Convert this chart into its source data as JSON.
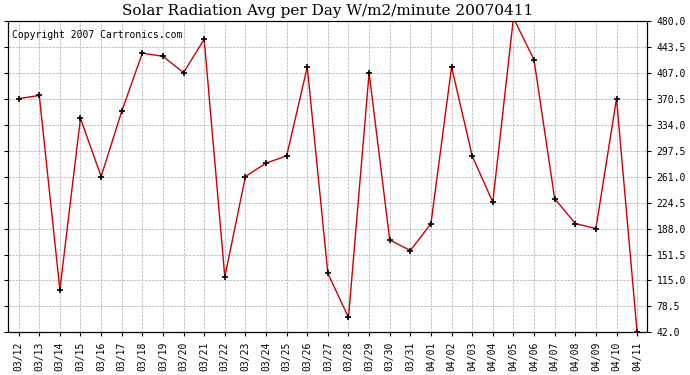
{
  "title": "Solar Radiation Avg per Day W/m2/minute 20070411",
  "copyright": "Copyright 2007 Cartronics.com",
  "labels": [
    "03/12",
    "03/13",
    "03/14",
    "03/15",
    "03/16",
    "03/17",
    "03/18",
    "03/19",
    "03/20",
    "03/21",
    "03/22",
    "03/23",
    "03/24",
    "03/25",
    "03/26",
    "03/27",
    "03/28",
    "03/29",
    "03/30",
    "03/31",
    "04/01",
    "04/02",
    "04/03",
    "04/04",
    "04/05",
    "04/06",
    "04/07",
    "04/08",
    "04/09",
    "04/10",
    "04/11"
  ],
  "values": [
    370.5,
    375.0,
    102.0,
    343.0,
    261.0,
    352.5,
    434.5,
    430.0,
    407.0,
    454.0,
    120.0,
    261.0,
    280.0,
    290.0,
    415.0,
    125.0,
    63.0,
    407.0,
    172.0,
    157.0,
    195.0,
    415.0,
    290.0,
    225.0,
    484.0,
    425.0,
    230.0,
    195.0,
    188.0,
    370.5,
    42.0
  ],
  "line_color": "#cc0000",
  "marker": "+",
  "marker_color": "#000000",
  "background_color": "#ffffff",
  "grid_color": "#aaaaaa",
  "ylim": [
    42.0,
    480.0
  ],
  "yticks": [
    42.0,
    78.5,
    115.0,
    151.5,
    188.0,
    224.5,
    261.0,
    297.5,
    334.0,
    370.5,
    407.0,
    443.5,
    480.0
  ],
  "title_fontsize": 11,
  "copyright_fontsize": 7,
  "tick_fontsize": 7,
  "figwidth": 6.9,
  "figheight": 3.75,
  "dpi": 100
}
